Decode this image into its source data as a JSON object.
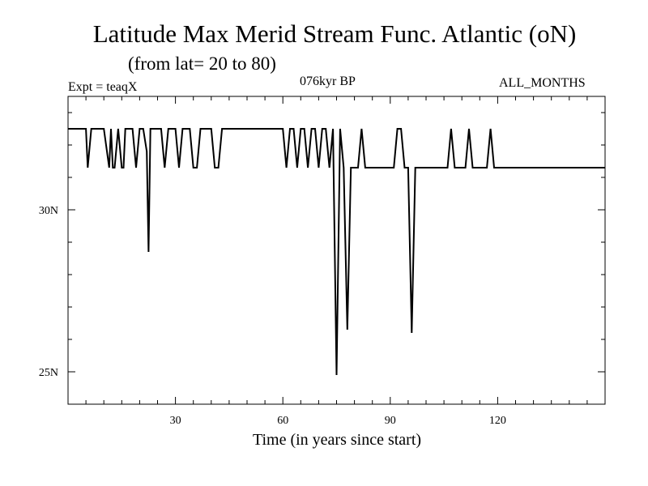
{
  "chart_data": {
    "type": "line",
    "title": "Latitude Max Merid Stream Func. Atlantic (oN)",
    "subtitle": "(from lat= 20 to 80)",
    "header_left": "Expt = teaqX",
    "header_center": "076kyr BP",
    "header_right": "ALL_MONTHS",
    "xlabel": "Time (in years since start)",
    "ylabel": "",
    "xlim": [
      0,
      150
    ],
    "ylim": [
      24,
      33.5
    ],
    "x_major_ticks": [
      30,
      60,
      90,
      120
    ],
    "x_tick_labels": [
      "30",
      "60",
      "90",
      "120"
    ],
    "y_major_ticks": [
      25,
      30
    ],
    "y_tick_labels": [
      "25N",
      "30N"
    ],
    "grid": false,
    "series": [
      {
        "name": "",
        "x": [
          0,
          5,
          5.5,
          6.5,
          8,
          9,
          10,
          11.5,
          12,
          12.5,
          13,
          14,
          15,
          15.5,
          16,
          17,
          18,
          19,
          20,
          20.5,
          21,
          22,
          22.5,
          23,
          24,
          25,
          26,
          27,
          28,
          29,
          30,
          31,
          32,
          33,
          34,
          35,
          36,
          37,
          38,
          39,
          40,
          41,
          42,
          43,
          44,
          45,
          46,
          47,
          48,
          49,
          50,
          51,
          52,
          53,
          54,
          55,
          56,
          57,
          58,
          59,
          60,
          61,
          62,
          63,
          64,
          65,
          66,
          67,
          68,
          69,
          70,
          71,
          72,
          73,
          74,
          75,
          76,
          77,
          78,
          79,
          80,
          81,
          82,
          83,
          84,
          85,
          86,
          87,
          88,
          89,
          90,
          91,
          92,
          93,
          94,
          95,
          96,
          97,
          98,
          99,
          100,
          101,
          102,
          103,
          104,
          105,
          106,
          107,
          108,
          109,
          110,
          111,
          112,
          113,
          114,
          115,
          116,
          117,
          118,
          119,
          120,
          121,
          122,
          125,
          130,
          135,
          140,
          145,
          150
        ],
        "y": [
          32.5,
          32.5,
          31.3,
          32.5,
          32.5,
          32.5,
          32.5,
          31.3,
          32.5,
          31.3,
          31.3,
          32.5,
          31.3,
          31.3,
          32.5,
          32.5,
          32.5,
          31.3,
          32.5,
          32.5,
          32.5,
          31.8,
          28.7,
          32.5,
          32.5,
          32.5,
          32.5,
          31.3,
          32.5,
          32.5,
          32.5,
          31.3,
          32.5,
          32.5,
          32.5,
          31.3,
          31.3,
          32.5,
          32.5,
          32.5,
          32.5,
          31.3,
          31.3,
          32.5,
          32.5,
          32.5,
          32.5,
          32.5,
          32.5,
          32.5,
          32.5,
          32.5,
          32.5,
          32.5,
          32.5,
          32.5,
          32.5,
          32.5,
          32.5,
          32.5,
          32.5,
          31.3,
          32.5,
          32.5,
          31.3,
          32.5,
          32.5,
          31.3,
          32.5,
          32.5,
          31.3,
          32.5,
          32.5,
          31.3,
          32.5,
          24.9,
          32.5,
          31.3,
          26.3,
          31.3,
          31.3,
          31.3,
          32.5,
          31.3,
          31.3,
          31.3,
          31.3,
          31.3,
          31.3,
          31.3,
          31.3,
          31.3,
          32.5,
          32.5,
          31.3,
          31.3,
          26.2,
          31.3,
          31.3,
          31.3,
          31.3,
          31.3,
          31.3,
          31.3,
          31.3,
          31.3,
          31.3,
          32.5,
          31.3,
          31.3,
          31.3,
          31.3,
          32.5,
          31.3,
          31.3,
          31.3,
          31.3,
          31.3,
          32.5,
          31.3,
          31.3,
          31.3,
          31.3,
          31.3,
          31.3,
          31.3,
          31.3,
          31.3,
          31.3
        ]
      }
    ]
  }
}
